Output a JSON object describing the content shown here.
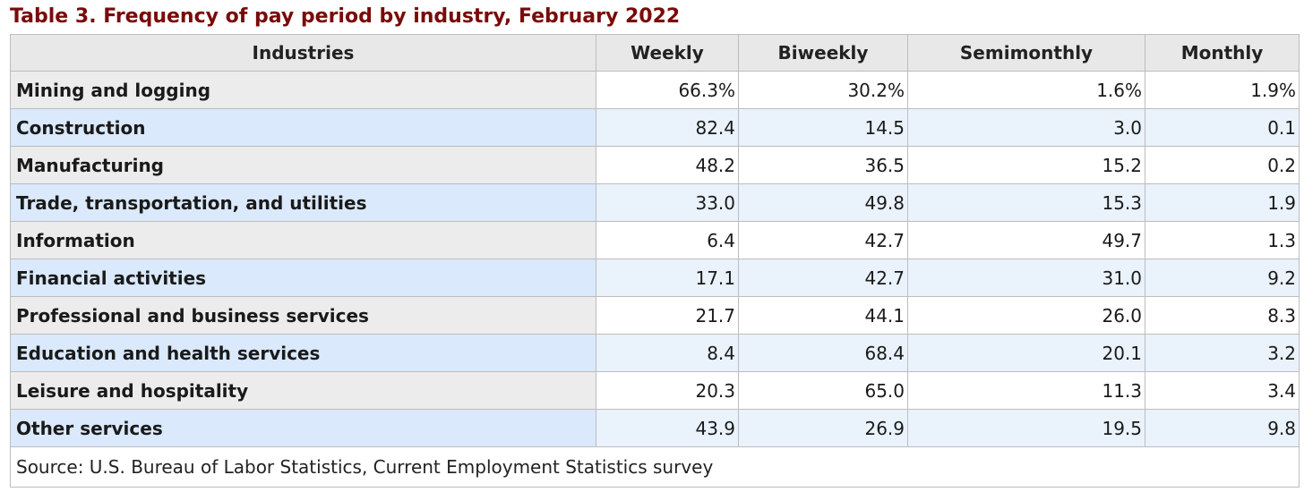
{
  "title": "Table 3. Frequency of pay period by industry, February 2022",
  "table": {
    "headers": [
      "Industries",
      "Weekly",
      "Biweekly",
      "Semimonthly",
      "Monthly"
    ],
    "rows": [
      {
        "industry": "Mining and logging",
        "weekly": "66.3%",
        "biweekly": "30.2%",
        "semimonthly": "1.6%",
        "monthly": "1.9%"
      },
      {
        "industry": "Construction",
        "weekly": "82.4",
        "biweekly": "14.5",
        "semimonthly": "3.0",
        "monthly": "0.1"
      },
      {
        "industry": "Manufacturing",
        "weekly": "48.2",
        "biweekly": "36.5",
        "semimonthly": "15.2",
        "monthly": "0.2"
      },
      {
        "industry": "Trade, transportation, and utilities",
        "weekly": "33.0",
        "biweekly": "49.8",
        "semimonthly": "15.3",
        "monthly": "1.9"
      },
      {
        "industry": "Information",
        "weekly": "6.4",
        "biweekly": "42.7",
        "semimonthly": "49.7",
        "monthly": "1.3"
      },
      {
        "industry": "Financial activities",
        "weekly": "17.1",
        "biweekly": "42.7",
        "semimonthly": "31.0",
        "monthly": "9.2"
      },
      {
        "industry": "Professional and business services",
        "weekly": "21.7",
        "biweekly": "44.1",
        "semimonthly": "26.0",
        "monthly": "8.3"
      },
      {
        "industry": "Education and health services",
        "weekly": "8.4",
        "biweekly": "68.4",
        "semimonthly": "20.1",
        "monthly": "3.2"
      },
      {
        "industry": "Leisure and hospitality",
        "weekly": "20.3",
        "biweekly": "65.0",
        "semimonthly": "11.3",
        "monthly": "3.4"
      },
      {
        "industry": "Other services",
        "weekly": "43.9",
        "biweekly": "26.9",
        "semimonthly": "19.5",
        "monthly": "9.8"
      }
    ],
    "source": "Source: U.S. Bureau of Labor Statistics, Current Employment Statistics survey"
  },
  "colors": {
    "title": "#7a0a0a",
    "header_bg": "#e8e8e8",
    "odd_label_bg": "#ececec",
    "even_label_bg": "#dae9fb",
    "even_cell_bg": "#eaf2fc",
    "border": "#bdbdbd"
  }
}
